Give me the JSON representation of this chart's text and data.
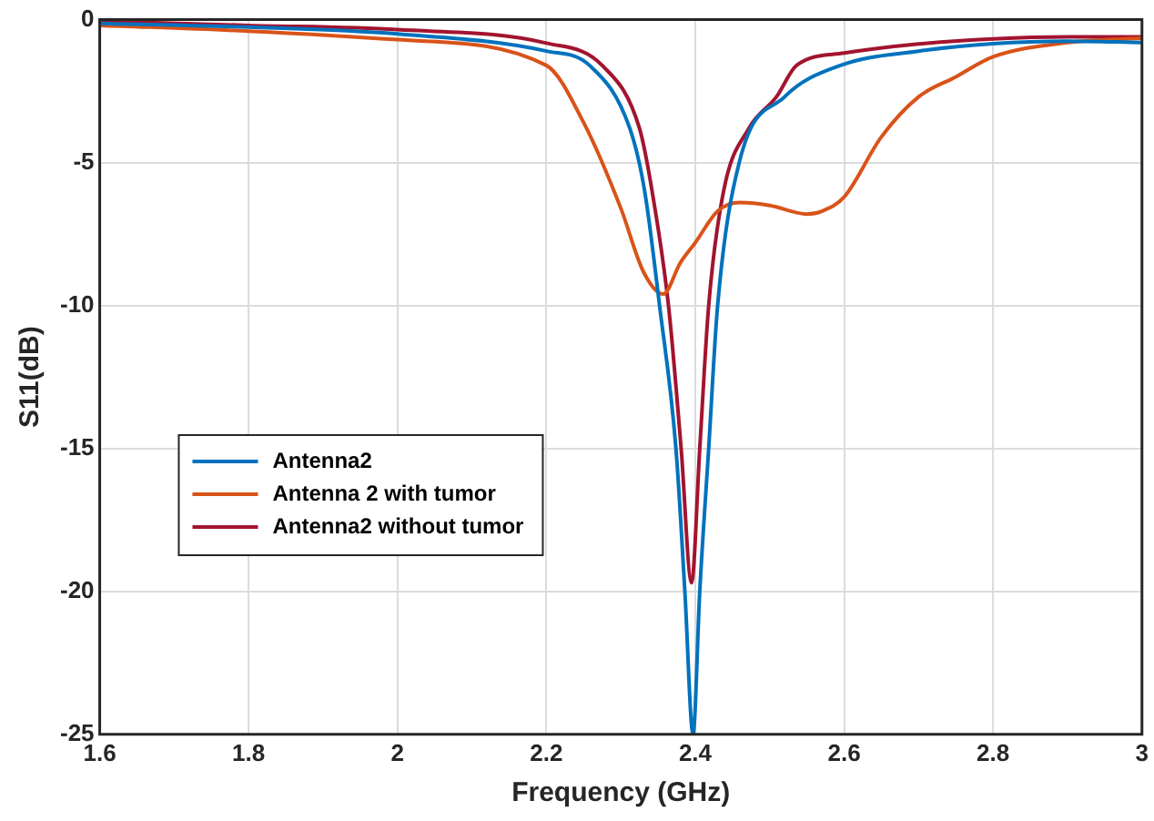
{
  "chart_data": {
    "type": "line",
    "xlabel": "Frequency (GHz)",
    "ylabel": "S11(dB)",
    "xlim": [
      1.6,
      3
    ],
    "xticks": [
      1.6,
      1.8,
      2,
      2.2,
      2.4,
      2.6,
      2.8,
      3
    ],
    "ylim": [
      -25,
      0
    ],
    "yticks": [
      -25,
      -20,
      -15,
      -10,
      -5,
      0
    ],
    "grid": true,
    "legend": "left",
    "marker": "none",
    "line_style": "solid",
    "series": [
      {
        "name": "Antenna2",
        "color": "#0072bd",
        "x": [
          1.6,
          1.8,
          2.0,
          2.2,
          2.258,
          2.312,
          2.332,
          2.352,
          2.374,
          2.386,
          2.397,
          2.406,
          2.418,
          2.43,
          2.459,
          2.52,
          2.595,
          2.7,
          2.8,
          2.9,
          3.0
        ],
        "values": [
          -0.13,
          -0.26,
          -0.5,
          -1.1,
          -1.6,
          -3.8,
          -6,
          -10,
          -15,
          -20,
          -25,
          -20,
          -15,
          -10,
          -5,
          -2.7,
          -1.6,
          -1.1,
          -0.84,
          -0.75,
          -0.8
        ]
      },
      {
        "name": "Antenna 2 with tumor",
        "color": "#d95319",
        "x": [
          1.6,
          1.8,
          2.0,
          2.2,
          2.25,
          2.3,
          2.33,
          2.357,
          2.38,
          2.4,
          2.43,
          2.46,
          2.5,
          2.55,
          2.57,
          2.6,
          2.65,
          2.7,
          2.75,
          2.8,
          2.9,
          3.0
        ],
        "values": [
          -0.2,
          -0.4,
          -0.7,
          -1.6,
          -3.6,
          -6.6,
          -8.8,
          -9.6,
          -8.5,
          -7.8,
          -6.7,
          -6.4,
          -6.5,
          -6.8,
          -6.7,
          -6.2,
          -4.1,
          -2.7,
          -2,
          -1.3,
          -0.8,
          -0.65
        ]
      },
      {
        "name": "Antenna2 without tumor",
        "color": "#a2142f",
        "x": [
          1.6,
          1.8,
          2.0,
          2.2,
          2.275,
          2.325,
          2.342,
          2.364,
          2.381,
          2.395,
          2.406,
          2.418,
          2.438,
          2.472,
          2.509,
          2.536,
          2.6,
          2.7,
          2.8,
          2.9,
          3.0
        ],
        "values": [
          -0.05,
          -0.2,
          -0.35,
          -0.82,
          -1.6,
          -3.8,
          -6,
          -10,
          -15,
          -19.7,
          -15,
          -10,
          -6,
          -3.8,
          -2.7,
          -1.6,
          -1.17,
          -0.85,
          -0.67,
          -0.6,
          -0.6
        ]
      }
    ]
  }
}
